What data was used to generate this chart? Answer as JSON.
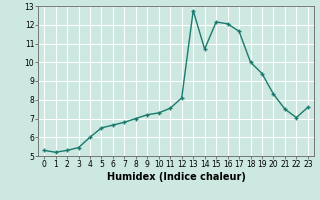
{
  "x": [
    0,
    1,
    2,
    3,
    4,
    5,
    6,
    7,
    8,
    9,
    10,
    11,
    12,
    13,
    14,
    15,
    16,
    17,
    18,
    19,
    20,
    21,
    22,
    23
  ],
  "y": [
    5.3,
    5.2,
    5.3,
    5.45,
    6.0,
    6.5,
    6.65,
    6.8,
    7.0,
    7.2,
    7.3,
    7.55,
    8.1,
    12.75,
    10.7,
    12.15,
    12.05,
    11.65,
    10.0,
    9.4,
    8.3,
    7.5,
    7.05,
    7.6
  ],
  "line_color": "#1a7a6e",
  "marker": "+",
  "marker_size": 3,
  "marker_lw": 1.0,
  "bg_color": "#cce8e0",
  "grid_color": "#ffffff",
  "xlabel": "Humidex (Indice chaleur)",
  "xlabel_fontsize": 7,
  "xlim": [
    -0.5,
    23.5
  ],
  "ylim": [
    5,
    13
  ],
  "yticks": [
    5,
    6,
    7,
    8,
    9,
    10,
    11,
    12,
    13
  ],
  "xticks": [
    0,
    1,
    2,
    3,
    4,
    5,
    6,
    7,
    8,
    9,
    10,
    11,
    12,
    13,
    14,
    15,
    16,
    17,
    18,
    19,
    20,
    21,
    22,
    23
  ],
  "linewidth": 1.0,
  "figsize": [
    3.2,
    2.0
  ],
  "dpi": 100
}
